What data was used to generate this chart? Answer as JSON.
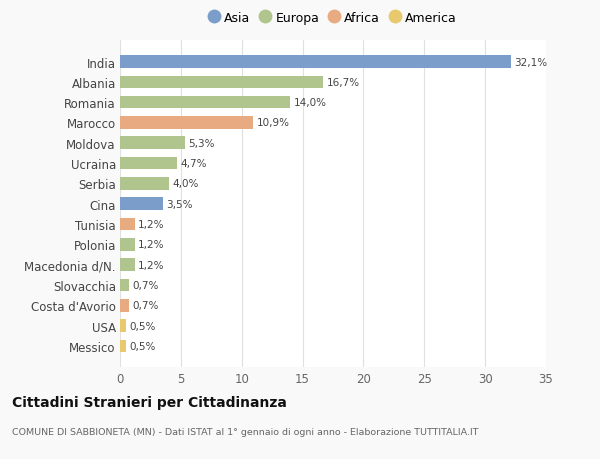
{
  "categories": [
    "India",
    "Albania",
    "Romania",
    "Marocco",
    "Moldova",
    "Ucraina",
    "Serbia",
    "Cina",
    "Tunisia",
    "Polonia",
    "Macedonia d/N.",
    "Slovacchia",
    "Costa d'Avorio",
    "USA",
    "Messico"
  ],
  "values": [
    32.1,
    16.7,
    14.0,
    10.9,
    5.3,
    4.7,
    4.0,
    3.5,
    1.2,
    1.2,
    1.2,
    0.7,
    0.7,
    0.5,
    0.5
  ],
  "labels": [
    "32,1%",
    "16,7%",
    "14,0%",
    "10,9%",
    "5,3%",
    "4,7%",
    "4,0%",
    "3,5%",
    "1,2%",
    "1,2%",
    "1,2%",
    "0,7%",
    "0,7%",
    "0,5%",
    "0,5%"
  ],
  "continent": [
    "Asia",
    "Europa",
    "Europa",
    "Africa",
    "Europa",
    "Europa",
    "Europa",
    "Asia",
    "Africa",
    "Europa",
    "Europa",
    "Europa",
    "Africa",
    "America",
    "America"
  ],
  "colors": {
    "Asia": "#7b9dc9",
    "Europa": "#b0c48e",
    "Africa": "#e8aa80",
    "America": "#e8c96e"
  },
  "legend_order": [
    "Asia",
    "Europa",
    "Africa",
    "America"
  ],
  "title": "Cittadini Stranieri per Cittadinanza",
  "subtitle": "COMUNE DI SABBIONETA (MN) - Dati ISTAT al 1° gennaio di ogni anno - Elaborazione TUTTITALIA.IT",
  "xlim": [
    0,
    35
  ],
  "xticks": [
    0,
    5,
    10,
    15,
    20,
    25,
    30,
    35
  ],
  "bg_color": "#f9f9f9",
  "plot_bg_color": "#ffffff",
  "grid_color": "#e0e0e0"
}
